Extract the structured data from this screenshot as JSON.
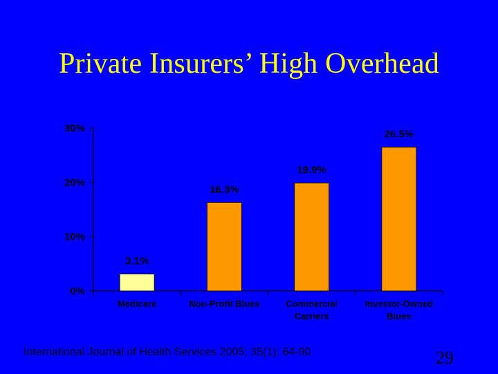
{
  "slide": {
    "title": "Private Insurers’ High Overhead",
    "citation": "International Journal of Health Services 2005; 35(1): 64-90",
    "page_number": "29"
  },
  "colors": {
    "background": "#0000ff",
    "title": "#ffff00",
    "text": "#000000",
    "highlight_bar": "#ffff99",
    "bar": "#ff9900"
  },
  "chart_data": {
    "type": "bar",
    "categories": [
      [
        "Medicare"
      ],
      [
        "Non-Profit Blues"
      ],
      [
        "Commercial",
        "Carriers"
      ],
      [
        "Investor-Owned",
        "Blues"
      ]
    ],
    "values": [
      3.1,
      16.3,
      19.9,
      26.5
    ],
    "data_labels": [
      "3.1%",
      "16.3%",
      "19.9%",
      "26.5%"
    ],
    "bar_colors": [
      "#ffff99",
      "#ff9900",
      "#ff9900",
      "#ff9900"
    ],
    "ylim": [
      0,
      30
    ],
    "yticks": [
      0,
      10,
      20,
      30
    ],
    "ytick_labels": [
      "0%",
      "10%",
      "20%",
      "30%"
    ],
    "title": "",
    "xlabel": "",
    "ylabel": "",
    "grid": false,
    "legend": "none"
  }
}
